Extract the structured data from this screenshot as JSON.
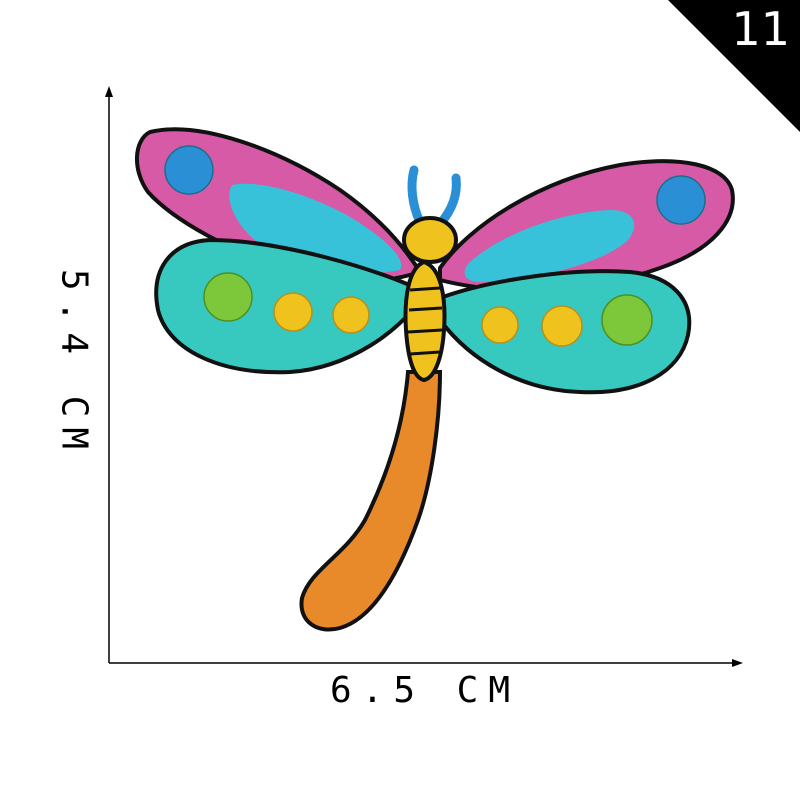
{
  "corner_badge": {
    "number": "11",
    "color": "#000000"
  },
  "dimensions": {
    "width_label": "6.5 CM",
    "height_label": "5.4 CM"
  },
  "patch": {
    "subject": "dragonfly",
    "colors": {
      "wing_pink": "#d65aa6",
      "wing_cyan": "#37c2da",
      "wing_teal": "#37c8bf",
      "dot_blue": "#2b8fd6",
      "dot_green": "#7cc83a",
      "dot_yellow": "#f0c21e",
      "tail_orange": "#e8892a",
      "outline": "#111111"
    }
  }
}
